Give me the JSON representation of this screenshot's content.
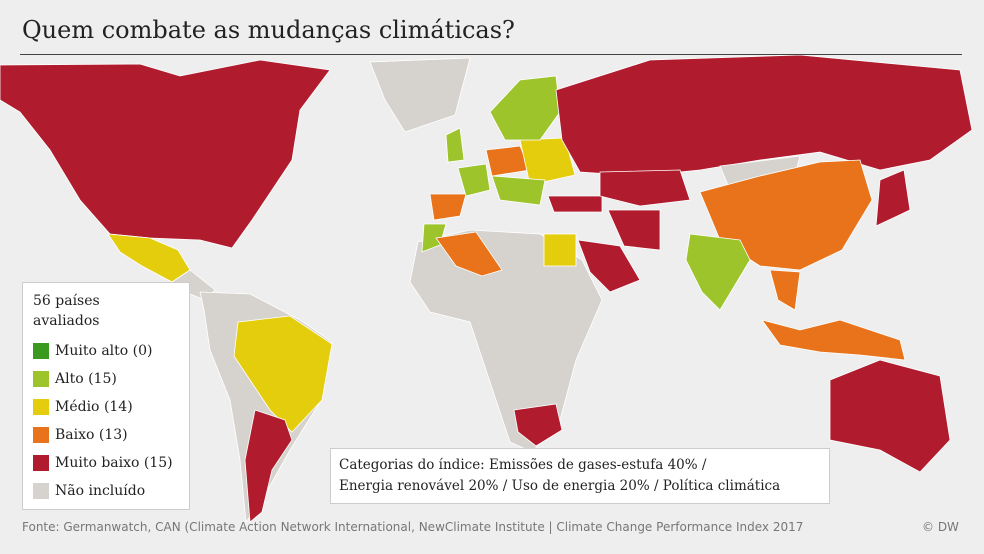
{
  "title": "Quem combate as mudanças climáticas?",
  "legend": {
    "heading": "56 países avaliados",
    "items": [
      {
        "label": "Muito alto (0)",
        "color": "#3a9a1e"
      },
      {
        "label": "Alto (15)",
        "color": "#9dc42b"
      },
      {
        "label": "Médio (14)",
        "color": "#e3cd0c"
      },
      {
        "label": "Baixo (13)",
        "color": "#e8731a"
      },
      {
        "label": "Muito baixo (15)",
        "color": "#b01c2e"
      },
      {
        "label": "Não incluído",
        "color": "#d6d2ce"
      }
    ]
  },
  "note": [
    "Categorias do índice: Emissões de gases-estufa 40% /",
    "Energia renovável 20% / Uso de energia 20% / Política climática"
  ],
  "source": "Fonte:  Germanwatch, CAN (Climate Action Network International, NewClimate Institute | Climate Change Performance Index 2017",
  "credit": "© DW"
}
